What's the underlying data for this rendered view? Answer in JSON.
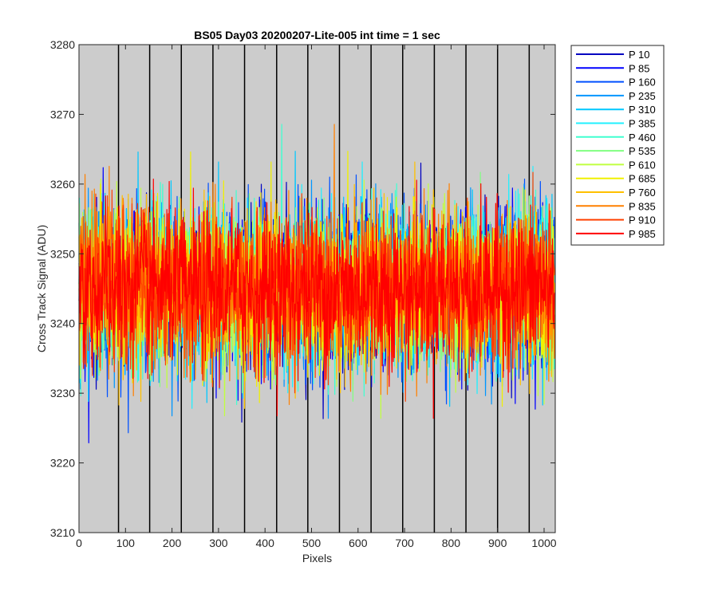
{
  "chart_data": {
    "type": "line",
    "title": "BS05 Day03 20200207-Lite-005 int time = 1 sec",
    "xlabel": "Pixels",
    "ylabel": "Cross Track Signal (ADU)",
    "xlim": [
      0,
      1024
    ],
    "ylim": [
      3210,
      3280
    ],
    "xticks": [
      0,
      100,
      200,
      300,
      400,
      500,
      600,
      700,
      800,
      900,
      1000
    ],
    "yticks": [
      3210,
      3220,
      3230,
      3240,
      3250,
      3260,
      3270,
      3280
    ],
    "x": {
      "start": 0,
      "end": 1023,
      "step": 1
    },
    "mean": 3245,
    "noise_sd": 5.5,
    "background": "#cccccc",
    "vertical_separators": [
      85,
      152,
      220,
      288,
      356,
      425,
      492,
      560,
      628,
      696,
      764,
      832,
      900,
      968
    ],
    "legend_position": "outside-right",
    "series": [
      {
        "name": "P 10",
        "color": "#0000c0"
      },
      {
        "name": "P 85",
        "color": "#0000ff"
      },
      {
        "name": "P 160",
        "color": "#0050ff"
      },
      {
        "name": "P 235",
        "color": "#0096ff"
      },
      {
        "name": "P 310",
        "color": "#00c8ff"
      },
      {
        "name": "P 385",
        "color": "#20f0ff"
      },
      {
        "name": "P 460",
        "color": "#40ffd0"
      },
      {
        "name": "P 535",
        "color": "#80ff80"
      },
      {
        "name": "P 610",
        "color": "#c0ff40"
      },
      {
        "name": "P 685",
        "color": "#f0f000"
      },
      {
        "name": "P 760",
        "color": "#ffc000"
      },
      {
        "name": "P 835",
        "color": "#ff8000"
      },
      {
        "name": "P 910",
        "color": "#ff4000"
      },
      {
        "name": "P 985",
        "color": "#ff0000"
      }
    ]
  }
}
